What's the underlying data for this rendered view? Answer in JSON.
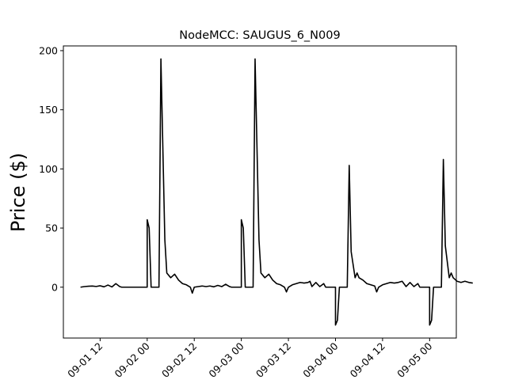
{
  "chart_data": {
    "type": "line",
    "title": "NodeMCC: SAUGUS_6_N009",
    "xlabel": "",
    "ylabel": "Price ($)",
    "ylim": [
      -43,
      204
    ],
    "xlim": [
      "2025-09-01 02:38",
      "2025-09-05 06:48"
    ],
    "grid": false,
    "legend": "none",
    "line_color": "#000000",
    "yticks": [
      0,
      50,
      100,
      150,
      200
    ],
    "xticks": [
      {
        "t": "2025-09-01 12:00",
        "label": "09-01 12"
      },
      {
        "t": "2025-09-02 00:00",
        "label": "09-02 00"
      },
      {
        "t": "2025-09-02 12:00",
        "label": "09-02 12"
      },
      {
        "t": "2025-09-03 00:00",
        "label": "09-03 00"
      },
      {
        "t": "2025-09-03 12:00",
        "label": "09-03 12"
      },
      {
        "t": "2025-09-04 00:00",
        "label": "09-04 00"
      },
      {
        "t": "2025-09-04 12:00",
        "label": "09-04 12"
      },
      {
        "t": "2025-09-05 00:00",
        "label": "09-05 00"
      }
    ],
    "series": [
      {
        "name": "",
        "points": [
          [
            "2025-09-01 07:00",
            0
          ],
          [
            "2025-09-01 08:00",
            0.5
          ],
          [
            "2025-09-01 09:00",
            0.8
          ],
          [
            "2025-09-01 10:00",
            1.0
          ],
          [
            "2025-09-01 11:00",
            0.6
          ],
          [
            "2025-09-01 12:00",
            1.2
          ],
          [
            "2025-09-01 13:00",
            0.3
          ],
          [
            "2025-09-01 14:00",
            1.8
          ],
          [
            "2025-09-01 15:00",
            0.2
          ],
          [
            "2025-09-01 16:00",
            3.0
          ],
          [
            "2025-09-01 17:00",
            0.5
          ],
          [
            "2025-09-01 17:30",
            0
          ],
          [
            "2025-09-01 23:00",
            0
          ],
          [
            "2025-09-02 00:00",
            0
          ],
          [
            "2025-09-02 00:00",
            57
          ],
          [
            "2025-09-02 00:30",
            50
          ],
          [
            "2025-09-02 01:00",
            0
          ],
          [
            "2025-09-02 02:00",
            0
          ],
          [
            "2025-09-02 03:00",
            0
          ],
          [
            "2025-09-02 03:30",
            193
          ],
          [
            "2025-09-02 04:30",
            40
          ],
          [
            "2025-09-02 05:00",
            12
          ],
          [
            "2025-09-02 06:00",
            8
          ],
          [
            "2025-09-02 07:00",
            11
          ],
          [
            "2025-09-02 08:00",
            6
          ],
          [
            "2025-09-02 09:00",
            3
          ],
          [
            "2025-09-02 10:00",
            2
          ],
          [
            "2025-09-02 11:00",
            0
          ],
          [
            "2025-09-02 11:30",
            -5
          ],
          [
            "2025-09-02 12:00",
            0
          ],
          [
            "2025-09-02 13:00",
            0.5
          ],
          [
            "2025-09-02 14:00",
            1.0
          ],
          [
            "2025-09-02 15:00",
            0.5
          ],
          [
            "2025-09-02 16:00",
            1.0
          ],
          [
            "2025-09-02 17:00",
            0.3
          ],
          [
            "2025-09-02 18:00",
            1.5
          ],
          [
            "2025-09-02 19:00",
            0.5
          ],
          [
            "2025-09-02 20:00",
            2.5
          ],
          [
            "2025-09-02 21:00",
            0.5
          ],
          [
            "2025-09-02 21:30",
            0
          ],
          [
            "2025-09-03 00:00",
            0
          ],
          [
            "2025-09-03 00:00",
            57
          ],
          [
            "2025-09-03 00:30",
            50
          ],
          [
            "2025-09-03 01:00",
            0
          ],
          [
            "2025-09-03 02:00",
            0
          ],
          [
            "2025-09-03 03:00",
            0
          ],
          [
            "2025-09-03 03:30",
            193
          ],
          [
            "2025-09-03 04:30",
            40
          ],
          [
            "2025-09-03 05:00",
            12
          ],
          [
            "2025-09-03 06:00",
            8
          ],
          [
            "2025-09-03 07:00",
            11
          ],
          [
            "2025-09-03 08:00",
            6
          ],
          [
            "2025-09-03 09:00",
            3
          ],
          [
            "2025-09-03 10:00",
            2
          ],
          [
            "2025-09-03 11:00",
            0
          ],
          [
            "2025-09-03 11:30",
            -4
          ],
          [
            "2025-09-03 12:00",
            0
          ],
          [
            "2025-09-03 13:00",
            2
          ],
          [
            "2025-09-03 14:00",
            3
          ],
          [
            "2025-09-03 15:00",
            4
          ],
          [
            "2025-09-03 16:00",
            3.5
          ],
          [
            "2025-09-03 17:00",
            4
          ],
          [
            "2025-09-03 17:30",
            5
          ],
          [
            "2025-09-03 18:00",
            0.5
          ],
          [
            "2025-09-03 19:00",
            4
          ],
          [
            "2025-09-03 20:00",
            0.5
          ],
          [
            "2025-09-03 21:00",
            3
          ],
          [
            "2025-09-03 21:30",
            0
          ],
          [
            "2025-09-04 00:00",
            0
          ],
          [
            "2025-09-04 00:00",
            -32
          ],
          [
            "2025-09-04 00:30",
            -28
          ],
          [
            "2025-09-04 01:00",
            0
          ],
          [
            "2025-09-04 02:00",
            0
          ],
          [
            "2025-09-04 03:00",
            0
          ],
          [
            "2025-09-04 03:30",
            103
          ],
          [
            "2025-09-04 04:00",
            30
          ],
          [
            "2025-09-04 05:00",
            8
          ],
          [
            "2025-09-04 05:30",
            12
          ],
          [
            "2025-09-04 06:00",
            8
          ],
          [
            "2025-09-04 07:00",
            6
          ],
          [
            "2025-09-04 08:00",
            3
          ],
          [
            "2025-09-04 09:00",
            2
          ],
          [
            "2025-09-04 10:00",
            1
          ],
          [
            "2025-09-04 10:30",
            -4
          ],
          [
            "2025-09-04 11:00",
            0
          ],
          [
            "2025-09-04 12:00",
            2
          ],
          [
            "2025-09-04 13:00",
            3
          ],
          [
            "2025-09-04 14:00",
            4
          ],
          [
            "2025-09-04 15:00",
            3.5
          ],
          [
            "2025-09-04 16:00",
            4
          ],
          [
            "2025-09-04 17:00",
            5
          ],
          [
            "2025-09-04 18:00",
            0.5
          ],
          [
            "2025-09-04 19:00",
            4
          ],
          [
            "2025-09-04 20:00",
            0.5
          ],
          [
            "2025-09-04 21:00",
            3
          ],
          [
            "2025-09-04 21:30",
            0
          ],
          [
            "2025-09-05 00:00",
            0
          ],
          [
            "2025-09-05 00:00",
            -32
          ],
          [
            "2025-09-05 00:30",
            -28
          ],
          [
            "2025-09-05 01:00",
            0
          ],
          [
            "2025-09-05 02:00",
            0
          ],
          [
            "2025-09-05 03:00",
            0
          ],
          [
            "2025-09-05 03:30",
            108
          ],
          [
            "2025-09-05 04:00",
            35
          ],
          [
            "2025-09-05 05:00",
            8
          ],
          [
            "2025-09-05 05:30",
            12
          ],
          [
            "2025-09-05 06:00",
            8
          ],
          [
            "2025-09-05 07:00",
            5
          ],
          [
            "2025-09-05 08:00",
            4
          ],
          [
            "2025-09-05 09:00",
            5
          ],
          [
            "2025-09-05 10:00",
            4
          ],
          [
            "2025-09-05 11:00",
            3.5
          ]
        ]
      }
    ]
  }
}
